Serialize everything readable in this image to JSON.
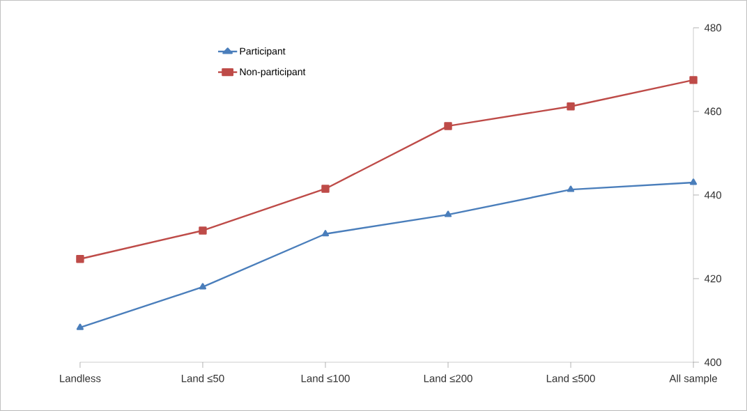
{
  "chart_data": {
    "type": "line",
    "categories": [
      "Landless",
      "Land ≤50",
      "Land ≤100",
      "Land ≤200",
      "Land ≤500",
      "All sample"
    ],
    "series": [
      {
        "name": "Participant",
        "color": "#4a7ebb",
        "marker": "triangle",
        "values": [
          408.3,
          418,
          430.7,
          435.3,
          441.3,
          443
        ]
      },
      {
        "name": "Non-participant",
        "color": "#be4b48",
        "marker": "square",
        "values": [
          424.7,
          431.5,
          441.5,
          456.5,
          461.2,
          467.5
        ]
      }
    ],
    "ylim": [
      400,
      480
    ],
    "yticks": [
      400,
      420,
      440,
      460,
      480
    ],
    "grid": false,
    "legend": "top left",
    "line_style": "solid"
  }
}
